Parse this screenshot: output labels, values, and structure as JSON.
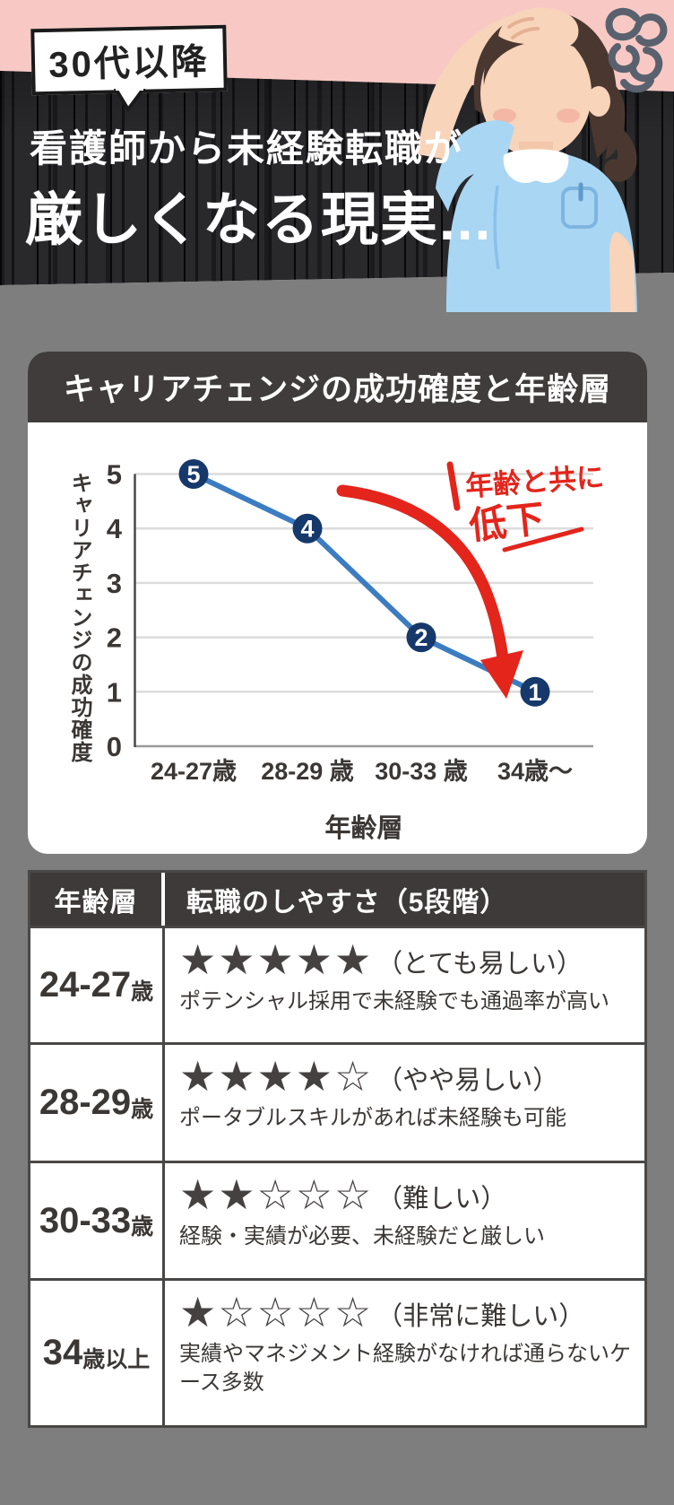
{
  "page": {
    "background": "#7E7E7E"
  },
  "hero": {
    "badge": "30代以降",
    "headline_line1": "看護師から未経験転職が",
    "headline_line2": "厳しくなる現実...",
    "colors": {
      "pink": "#F8C9C4",
      "band": "#29292C",
      "headline_text": "#FFFFFF"
    }
  },
  "chart_card": {
    "title": "キャリアチェンジの成功確度と年齢層",
    "header_bg": "#403C3B",
    "annotation": {
      "line1": "年齢と共に",
      "line2": "低下",
      "color": "#E3251C"
    }
  },
  "chart_data": {
    "type": "line",
    "title": "キャリアチェンジの成功確度と年齢層",
    "categories": [
      "24-27歳",
      "28-29 歳",
      "30-33 歳",
      "34歳〜"
    ],
    "values": [
      5,
      4,
      2,
      1
    ],
    "xlabel": "年齢層",
    "ylabel": "キャリアチェンジの成功確度",
    "ylim": [
      0,
      5
    ],
    "yticks": [
      0,
      1,
      2,
      3,
      4,
      5
    ],
    "grid": true,
    "legend": "none",
    "line_color": "#3C7CC1",
    "marker_color": "#16386B",
    "annotation": "年齢と共に低下"
  },
  "table": {
    "stars_max": 5,
    "headers": [
      "年齢層",
      "転職のしやすさ（5段階）"
    ],
    "header_bg": "#3E3A39",
    "star_color": "#454140",
    "rows": [
      {
        "age_main": "24-27",
        "age_suffix": "歳",
        "stars": 5,
        "rating": "（とても易しい）",
        "description": "ポテンシャル採用で未経験でも通過率が高い"
      },
      {
        "age_main": "28-29",
        "age_suffix": "歳",
        "stars": 4,
        "rating": "（やや易しい）",
        "description": "ポータブルスキルがあれば未経験も可能"
      },
      {
        "age_main": "30-33",
        "age_suffix": "歳",
        "stars": 2,
        "rating": "（難しい）",
        "description": "経験・実績が必要、未経験だと厳しい"
      },
      {
        "age_main": "34",
        "age_suffix": "歳以上",
        "stars": 1,
        "rating": "（非常に難しい）",
        "description": "実績やマネジメント経験がなければ通らないケース多数"
      }
    ]
  }
}
